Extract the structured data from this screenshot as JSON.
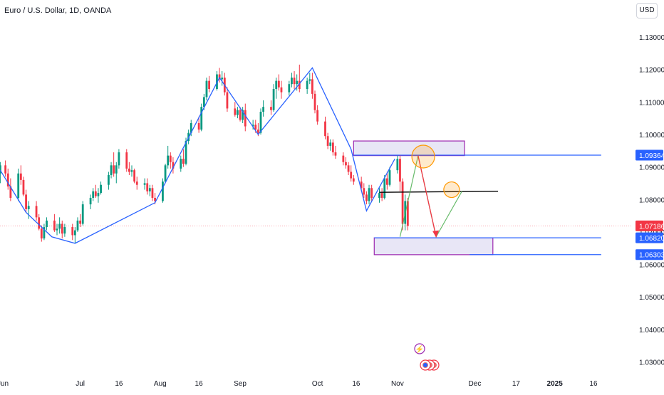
{
  "header": {
    "title": "Euro / U.S. Dollar, 1D, OANDA",
    "currency_button": "USD"
  },
  "chart_data": {
    "type": "candlestick",
    "title": "Euro / U.S. Dollar, 1D, OANDA",
    "ylim": [
      1.0285,
      1.1375
    ],
    "y_ticks": [
      "1.13000",
      "1.12000",
      "1.11000",
      "1.10000",
      "1.09000",
      "1.08000",
      "1.07000",
      "1.06000",
      "1.05000",
      "1.04000",
      "1.03000"
    ],
    "x_ticks": [
      {
        "label": "Jun",
        "day": 0
      },
      {
        "label": "Jul",
        "day": 30
      },
      {
        "label": "16",
        "day": 45
      },
      {
        "label": "Aug",
        "day": 61
      },
      {
        "label": "16",
        "day": 76
      },
      {
        "label": "Sep",
        "day": 92
      },
      {
        "label": "Oct",
        "day": 122
      },
      {
        "label": "16",
        "day": 137
      },
      {
        "label": "Nov",
        "day": 153
      },
      {
        "label": "Dec",
        "day": 183
      },
      {
        "label": "17",
        "day": 199
      },
      {
        "label": "2025",
        "day": 214
      },
      {
        "label": "16",
        "day": 229
      }
    ],
    "grid": false,
    "current_price": "1.07186",
    "price_labels": [
      {
        "text": "1.09364",
        "value": 1.09364,
        "type": "level"
      },
      {
        "text": "1.07186",
        "value": 1.07186,
        "type": "current"
      },
      {
        "text": "1.06820",
        "value": 1.0682,
        "type": "level"
      },
      {
        "text": "1.06303",
        "value": 1.06303,
        "type": "level"
      }
    ],
    "candles": [
      [
        -1,
        1.088,
        1.0915,
        1.085,
        1.0905
      ],
      [
        1,
        1.0905,
        1.092,
        1.087,
        1.088
      ],
      [
        2,
        1.088,
        1.0895,
        1.083,
        1.084
      ],
      [
        3,
        1.084,
        1.0865,
        1.0795,
        1.0805
      ],
      [
        6,
        1.0805,
        1.0895,
        1.0795,
        1.088
      ],
      [
        7,
        1.088,
        1.0905,
        1.0845,
        1.086
      ],
      [
        8,
        1.086,
        1.087,
        1.081,
        1.0815
      ],
      [
        9,
        1.0815,
        1.083,
        1.076,
        1.077
      ],
      [
        10,
        1.077,
        1.0795,
        1.074,
        1.078
      ],
      [
        13,
        1.078,
        1.0795,
        1.0735,
        1.0745
      ],
      [
        14,
        1.0745,
        1.0755,
        1.0705,
        1.071
      ],
      [
        15,
        1.071,
        1.072,
        1.067,
        1.068
      ],
      [
        16,
        1.068,
        1.0725,
        1.0675,
        1.0715
      ],
      [
        17,
        1.0715,
        1.0745,
        1.0705,
        1.0735
      ],
      [
        20,
        1.0735,
        1.0755,
        1.07,
        1.0705
      ],
      [
        21,
        1.0705,
        1.0725,
        1.069,
        1.071
      ],
      [
        22,
        1.071,
        1.0745,
        1.0695,
        1.0725
      ],
      [
        23,
        1.0725,
        1.0735,
        1.068,
        1.0695
      ],
      [
        24,
        1.0695,
        1.0725,
        1.0685,
        1.0715
      ],
      [
        27,
        1.0715,
        1.0725,
        1.0675,
        1.069
      ],
      [
        28,
        1.069,
        1.0715,
        1.0665,
        1.0705
      ],
      [
        29,
        1.0705,
        1.0745,
        1.07,
        1.0735
      ],
      [
        30,
        1.0735,
        1.0755,
        1.0715,
        1.0725
      ],
      [
        31,
        1.0725,
        1.0795,
        1.072,
        1.0785
      ],
      [
        34,
        1.0785,
        1.0815,
        1.077,
        1.0805
      ],
      [
        35,
        1.0805,
        1.0835,
        1.0795,
        1.0825
      ],
      [
        36,
        1.0825,
        1.0845,
        1.0805,
        1.081
      ],
      [
        37,
        1.081,
        1.0835,
        1.079,
        1.082
      ],
      [
        38,
        1.082,
        1.0855,
        1.0815,
        1.0845
      ],
      [
        41,
        1.0845,
        1.0885,
        1.083,
        1.0875
      ],
      [
        42,
        1.0875,
        1.0915,
        1.0865,
        1.0905
      ],
      [
        43,
        1.0905,
        1.0945,
        1.087,
        1.088
      ],
      [
        44,
        1.088,
        1.0915,
        1.085,
        1.0905
      ],
      [
        45,
        1.0905,
        1.0955,
        1.0895,
        1.0945
      ],
      [
        48,
        1.0945,
        1.0955,
        1.0885,
        1.0895
      ],
      [
        49,
        1.0895,
        1.0915,
        1.0875,
        1.0885
      ],
      [
        50,
        1.0885,
        1.0905,
        1.087,
        1.089
      ],
      [
        51,
        1.089,
        1.0895,
        1.085,
        1.0855
      ],
      [
        52,
        1.0855,
        1.087,
        1.083,
        1.0845
      ],
      [
        55,
        1.0845,
        1.0865,
        1.083,
        1.085
      ],
      [
        56,
        1.085,
        1.0865,
        1.0815,
        1.0825
      ],
      [
        57,
        1.0825,
        1.0845,
        1.081,
        1.0835
      ],
      [
        58,
        1.0835,
        1.0845,
        1.0795,
        1.0805
      ],
      [
        59,
        1.0805,
        1.082,
        1.0785,
        1.0795
      ],
      [
        62,
        1.0795,
        1.0865,
        1.079,
        1.0855
      ],
      [
        63,
        1.0855,
        1.091,
        1.085,
        1.0905
      ],
      [
        64,
        1.0905,
        1.0965,
        1.0895,
        1.0935
      ],
      [
        65,
        1.0935,
        1.0945,
        1.0895,
        1.0915
      ],
      [
        66,
        1.0915,
        1.093,
        1.088,
        1.0895
      ],
      [
        69,
        1.0895,
        1.0935,
        1.0885,
        1.0925
      ],
      [
        70,
        1.0925,
        1.0955,
        1.09,
        1.091
      ],
      [
        71,
        1.091,
        1.099,
        1.0905,
        1.098
      ],
      [
        72,
        1.098,
        1.1015,
        1.097,
        1.1005
      ],
      [
        73,
        1.1005,
        1.1045,
        1.0995,
        1.1035
      ],
      [
        76,
        1.1035,
        1.1055,
        1.1005,
        1.1015
      ],
      [
        77,
        1.1015,
        1.1095,
        1.101,
        1.1085
      ],
      [
        78,
        1.1085,
        1.1125,
        1.1075,
        1.1115
      ],
      [
        79,
        1.1115,
        1.1175,
        1.1105,
        1.1165
      ],
      [
        80,
        1.1165,
        1.118,
        1.113,
        1.114
      ],
      [
        83,
        1.114,
        1.1195,
        1.1135,
        1.1185
      ],
      [
        84,
        1.1185,
        1.1205,
        1.116,
        1.117
      ],
      [
        85,
        1.117,
        1.1195,
        1.115,
        1.1175
      ],
      [
        86,
        1.1175,
        1.119,
        1.112,
        1.113
      ],
      [
        87,
        1.113,
        1.1145,
        1.107,
        1.108
      ],
      [
        90,
        1.108,
        1.11,
        1.1055,
        1.106
      ],
      [
        91,
        1.106,
        1.1085,
        1.105,
        1.1075
      ],
      [
        92,
        1.1075,
        1.1085,
        1.104,
        1.1045
      ],
      [
        93,
        1.1045,
        1.1085,
        1.1035,
        1.1075
      ],
      [
        94,
        1.1075,
        1.1095,
        1.101,
        1.1025
      ],
      [
        97,
        1.1025,
        1.1045,
        1.1015,
        1.103
      ],
      [
        98,
        1.103,
        1.1045,
        1.1005,
        1.1015
      ],
      [
        99,
        1.1015,
        1.1035,
        1.0995,
        1.1005
      ],
      [
        100,
        1.1005,
        1.108,
        1.1,
        1.107
      ],
      [
        101,
        1.107,
        1.1105,
        1.1055,
        1.1085
      ],
      [
        104,
        1.1085,
        1.1105,
        1.106,
        1.1075
      ],
      [
        105,
        1.1075,
        1.1155,
        1.107,
        1.114
      ],
      [
        106,
        1.114,
        1.1175,
        1.111,
        1.1165
      ],
      [
        107,
        1.1165,
        1.1185,
        1.1135,
        1.1145
      ],
      [
        108,
        1.1145,
        1.1165,
        1.111,
        1.113
      ],
      [
        111,
        1.113,
        1.1165,
        1.112,
        1.1155
      ],
      [
        112,
        1.1155,
        1.119,
        1.1145,
        1.1175
      ],
      [
        113,
        1.1175,
        1.1195,
        1.114,
        1.1155
      ],
      [
        114,
        1.1155,
        1.1185,
        1.1135,
        1.1165
      ],
      [
        115,
        1.1165,
        1.1215,
        1.113,
        1.114
      ],
      [
        118,
        1.114,
        1.1175,
        1.1125,
        1.1165
      ],
      [
        119,
        1.1165,
        1.119,
        1.1155,
        1.117
      ],
      [
        120,
        1.117,
        1.119,
        1.111,
        1.1125
      ],
      [
        121,
        1.1125,
        1.1135,
        1.1065,
        1.1075
      ],
      [
        122,
        1.1075,
        1.109,
        1.103,
        1.104
      ],
      [
        125,
        1.104,
        1.1055,
        1.0985,
        1.0995
      ],
      [
        126,
        1.0995,
        1.1005,
        1.0955,
        1.0965
      ],
      [
        127,
        1.0965,
        1.0985,
        1.095,
        1.0975
      ],
      [
        128,
        1.0975,
        1.0985,
        1.0935,
        1.0945
      ],
      [
        129,
        1.0945,
        1.0965,
        1.0925,
        1.0935
      ],
      [
        132,
        1.0935,
        1.0945,
        1.0905,
        1.0915
      ],
      [
        133,
        1.0915,
        1.093,
        1.0895,
        1.0905
      ],
      [
        134,
        1.0905,
        1.0915,
        1.0875,
        1.0885
      ],
      [
        135,
        1.0885,
        1.0905,
        1.0855,
        1.0865
      ],
      [
        136,
        1.0865,
        1.0875,
        1.0845,
        1.0855
      ],
      [
        139,
        1.0855,
        1.087,
        1.0825,
        1.0835
      ],
      [
        140,
        1.0835,
        1.085,
        1.0805,
        1.0815
      ],
      [
        141,
        1.0815,
        1.0825,
        1.0785,
        1.0795
      ],
      [
        142,
        1.0795,
        1.0845,
        1.0785,
        1.0835
      ],
      [
        143,
        1.0835,
        1.0845,
        1.0795,
        1.0805
      ],
      [
        146,
        1.0805,
        1.0835,
        1.079,
        1.082
      ],
      [
        147,
        1.082,
        1.0835,
        1.0795,
        1.0805
      ],
      [
        148,
        1.0805,
        1.0875,
        1.08,
        1.0865
      ],
      [
        149,
        1.0865,
        1.0885,
        1.083,
        1.0845
      ],
      [
        150,
        1.0845,
        1.09,
        1.084,
        1.089
      ],
      [
        153,
        1.089,
        1.0935,
        1.088,
        1.0925
      ],
      [
        154,
        1.0925,
        1.0935,
        1.0825,
        1.0855
      ],
      [
        155,
        1.0855,
        1.0865,
        1.0705,
        1.0725
      ],
      [
        156,
        1.0725,
        1.0815,
        1.0705,
        1.0795
      ],
      [
        157,
        1.0795,
        1.0805,
        1.0705,
        1.0719
      ]
    ],
    "annotations": {
      "zigzag": [
        [
          -1,
          1.089
        ],
        [
          9,
          1.076
        ],
        [
          19,
          1.0685
        ],
        [
          28,
          1.0665
        ],
        [
          59,
          1.079
        ],
        [
          84,
          1.1175
        ],
        [
          99,
          1.1
        ],
        [
          120,
          1.1205
        ],
        [
          135,
          1.0955
        ],
        [
          141,
          1.0765
        ],
        [
          152,
          1.0925
        ]
      ],
      "supply_box": {
        "x": [
          136,
          179
        ],
        "y": [
          1.0935,
          1.098
        ]
      },
      "demand_box": {
        "x": [
          144,
          190
        ],
        "y": [
          1.063,
          1.0682
        ]
      },
      "level_lines": [
        {
          "x": [
            136,
            232
          ],
          "y": 1.09364
        },
        {
          "x": [
            144,
            232
          ],
          "y": 1.0682
        },
        {
          "x": [
            181,
            232
          ],
          "y": 1.06303
        }
      ],
      "pivot_line": {
        "x": [
          146,
          192
        ],
        "y": 1.0822
      },
      "projection_green": [
        [
          154,
          1.0685
        ],
        [
          161,
          1.0935
        ],
        [
          168,
          1.0685
        ],
        [
          178,
          1.0825
        ]
      ],
      "projection_red": [
        [
          161,
          1.0935
        ],
        [
          168,
          1.0685
        ]
      ],
      "circles": [
        {
          "x": 163,
          "y": 1.0932,
          "r": 16
        },
        {
          "x": 174,
          "y": 1.083,
          "r": 11
        }
      ]
    }
  }
}
